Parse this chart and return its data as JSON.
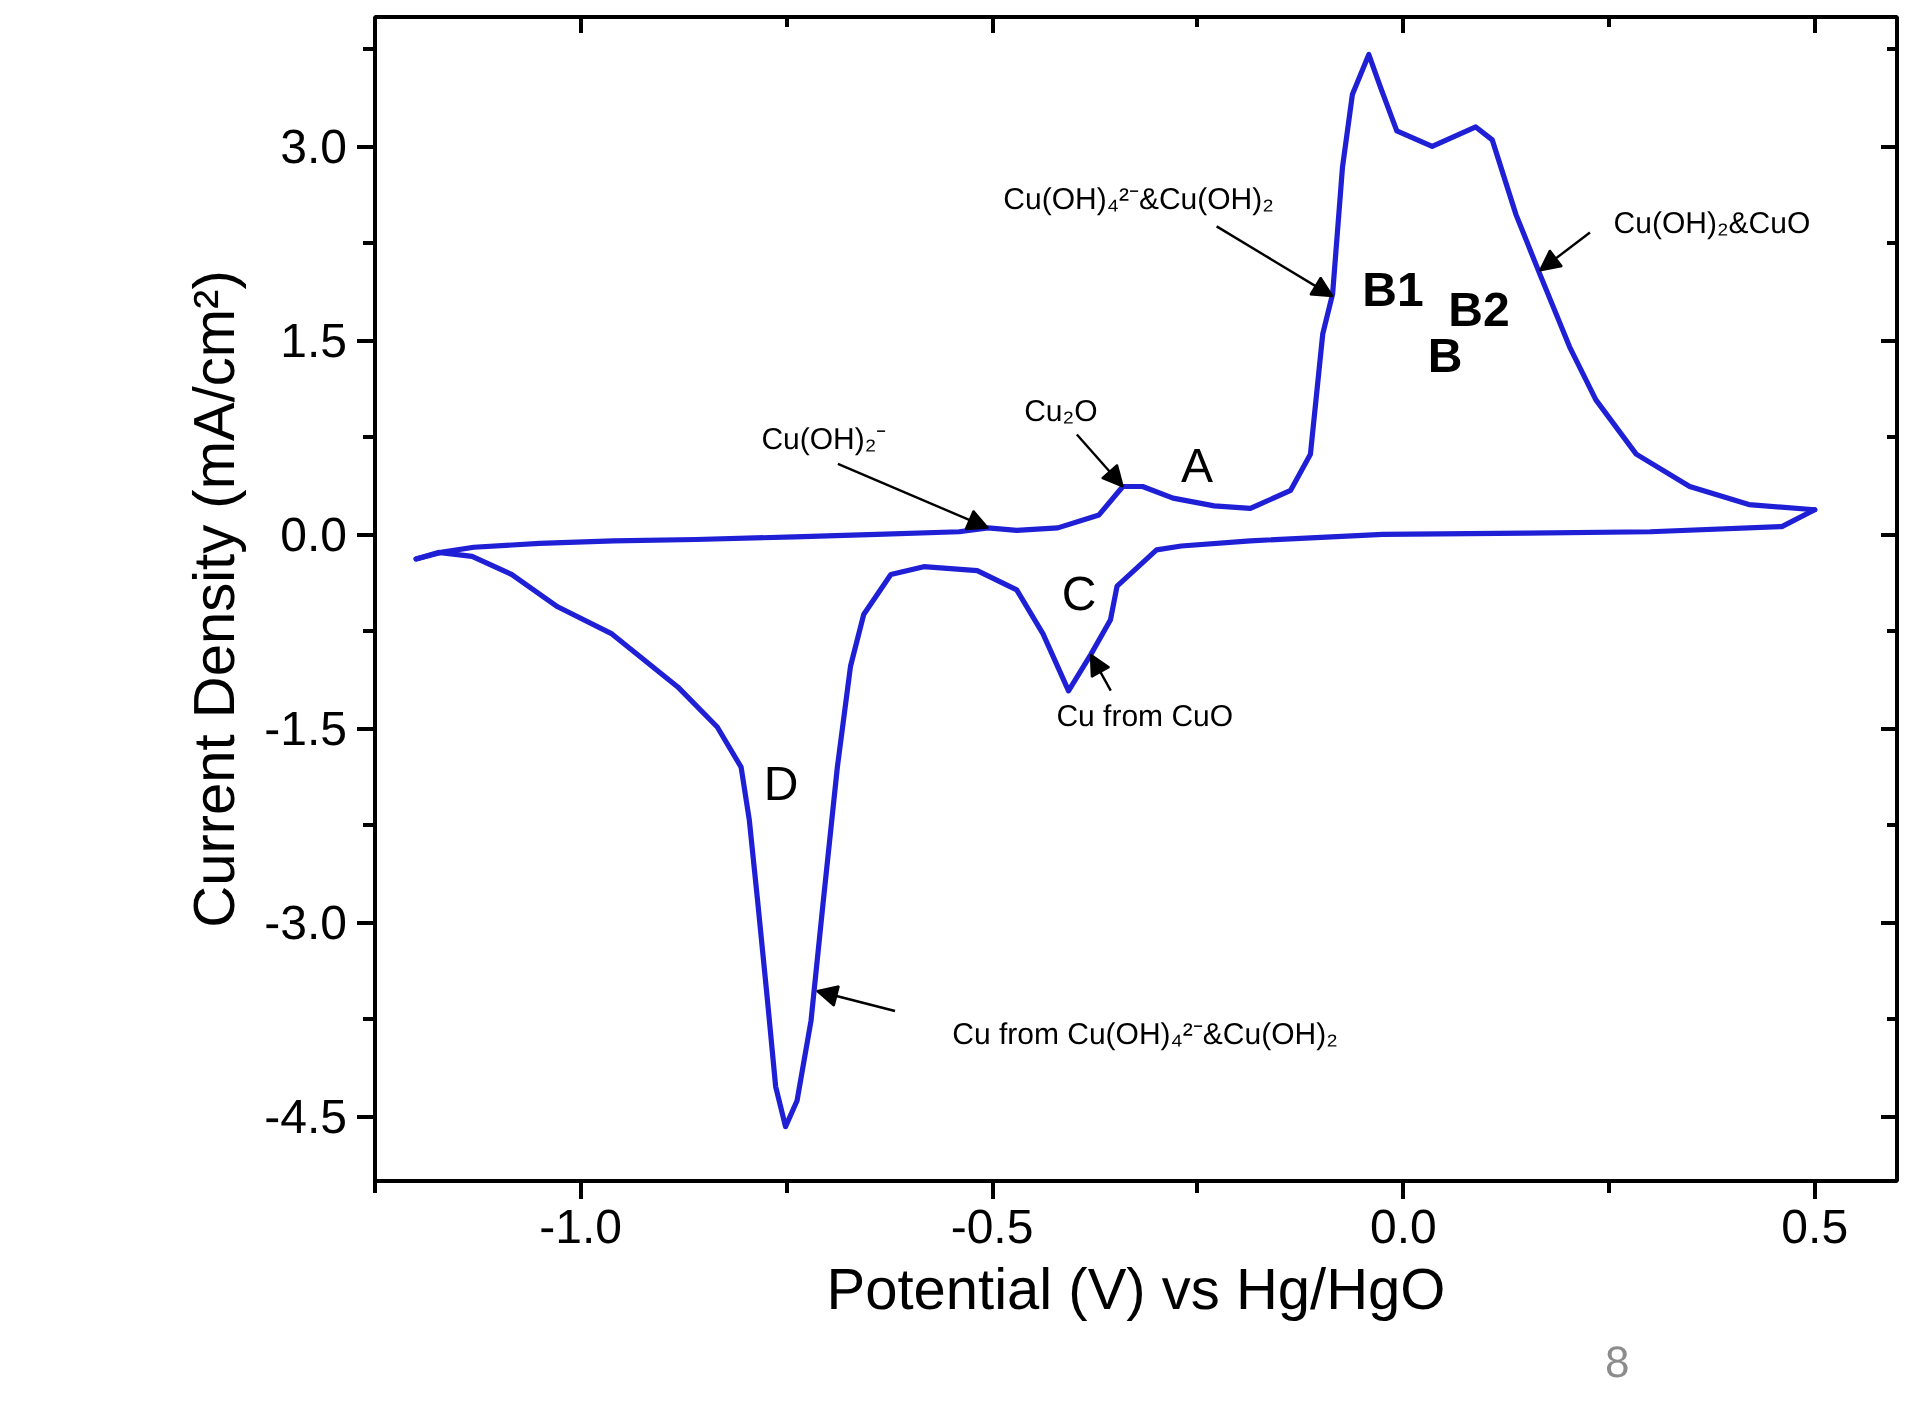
{
  "chart_data": {
    "type": "line",
    "xlabel": "Potential (V) vs Hg/HgO",
    "ylabel": "Current Density (mA/cm²)",
    "xlim": [
      -1.25,
      0.6
    ],
    "ylim": [
      -5,
      4
    ],
    "xticks": [
      {
        "value": -1.25,
        "label": null
      },
      {
        "value": -1,
        "label": "-1.0"
      },
      {
        "value": -0.75,
        "label": null
      },
      {
        "value": -0.5,
        "label": "-0.5"
      },
      {
        "value": -0.25,
        "label": null
      },
      {
        "value": 0,
        "label": "0.0"
      },
      {
        "value": 0.25,
        "label": null
      },
      {
        "value": 0.5,
        "label": "0.5"
      }
    ],
    "yticks": [
      {
        "value": -4.5,
        "label": "-4.5"
      },
      {
        "value": -3.75,
        "label": null
      },
      {
        "value": -3,
        "label": "-3.0"
      },
      {
        "value": -2.25,
        "label": null
      },
      {
        "value": -1.5,
        "label": "-1.5"
      },
      {
        "value": -0.75,
        "label": null
      },
      {
        "value": 0,
        "label": "0.0"
      },
      {
        "value": 0.75,
        "label": null
      },
      {
        "value": 1.5,
        "label": "1.5"
      },
      {
        "value": 2.25,
        "label": null
      },
      {
        "value": 3,
        "label": "3.0"
      },
      {
        "value": 3.75,
        "label": null
      }
    ],
    "marker": "none",
    "line_style": "solid",
    "series": [
      {
        "color": "#1f1fd6",
        "x": [
          -1.2,
          -1.17,
          -1.13,
          -1.05,
          -0.96,
          -0.86,
          -0.74,
          -0.64,
          -0.54,
          -0.505,
          -0.47,
          -0.42,
          -0.37,
          -0.341,
          -0.317,
          -0.28,
          -0.23,
          -0.186,
          -0.137,
          -0.113,
          -0.098,
          -0.086,
          -0.074,
          -0.062,
          -0.042,
          -0.028,
          -0.008,
          0.035,
          0.088,
          0.108,
          0.137,
          0.166,
          0.202,
          0.234,
          0.283,
          0.348,
          0.42,
          0.5
        ],
        "values": [
          -0.19,
          -0.14,
          -0.1,
          -0.07,
          -0.05,
          -0.04,
          -0.02,
          0.0,
          0.02,
          0.05,
          0.03,
          0.05,
          0.15,
          0.37,
          0.37,
          0.28,
          0.22,
          0.2,
          0.34,
          0.62,
          1.55,
          1.86,
          2.84,
          3.4,
          3.71,
          3.46,
          3.12,
          3.0,
          3.15,
          3.05,
          2.47,
          2.01,
          1.45,
          1.04,
          0.62,
          0.37,
          0.23,
          0.19
        ]
      },
      {
        "color": "#1f1fd6",
        "x": [
          -1.2,
          -1.173,
          -1.132,
          -1.084,
          -1.028,
          -0.962,
          -0.882,
          -0.834,
          -0.805,
          -0.795,
          -0.785,
          -0.773,
          -0.763,
          -0.751,
          -0.737,
          -0.72,
          -0.705,
          -0.688,
          -0.672,
          -0.656,
          -0.623,
          -0.583,
          -0.518,
          -0.47,
          -0.438,
          -0.407,
          -0.38,
          -0.356,
          -0.348,
          -0.3,
          -0.27,
          -0.186,
          -0.025,
          0.15,
          0.3,
          0.46,
          0.5
        ],
        "values": [
          -0.19,
          -0.14,
          -0.17,
          -0.31,
          -0.56,
          -0.77,
          -1.18,
          -1.49,
          -1.8,
          -2.21,
          -2.83,
          -3.6,
          -4.27,
          -4.58,
          -4.38,
          -3.76,
          -2.83,
          -1.8,
          -1.02,
          -0.62,
          -0.31,
          -0.25,
          -0.28,
          -0.43,
          -0.77,
          -1.21,
          -0.93,
          -0.66,
          -0.4,
          -0.12,
          -0.09,
          -0.05,
          0.0,
          0.01,
          0.02,
          0.06,
          0.19
        ]
      }
    ],
    "annotations": [
      {
        "text": "Cu(OH)₂⁻",
        "x": -0.505,
        "y": 0.05
      },
      {
        "text": "Cu₂O",
        "x": -0.341,
        "y": 0.37
      },
      {
        "text": "Cu(OH)₄²⁻&Cu(OH)₂",
        "x": -0.086,
        "y": 1.84
      },
      {
        "text": "Cu(OH)₂&CuO",
        "x": 0.166,
        "y": 2.04
      },
      {
        "text": "Cu from CuO",
        "x": -0.38,
        "y": -0.93
      },
      "Cu from Cu(OH)₄²⁻&Cu(OH)₂",
      "A",
      "B1",
      "B2",
      "B",
      "C",
      "D",
      "8"
    ]
  }
}
